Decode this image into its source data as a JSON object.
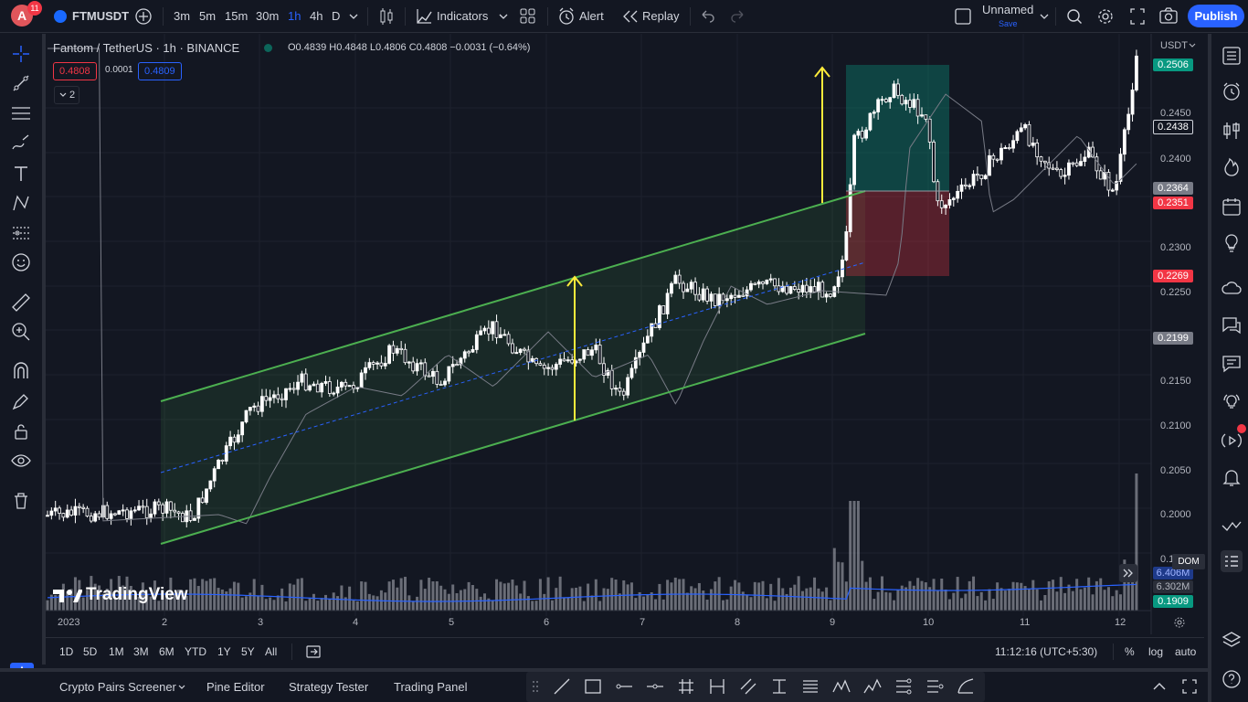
{
  "topbar": {
    "avatar_letter": "A",
    "notification_count": "11",
    "symbol": "FTMUSDT",
    "intervals": [
      "3m",
      "5m",
      "15m",
      "30m",
      "1h",
      "4h",
      "D"
    ],
    "active_interval": "1h",
    "indicators_label": "Indicators",
    "alert_label": "Alert",
    "replay_label": "Replay",
    "layout_name": "Unnamed",
    "save_label": "Save",
    "publish_label": "Publish"
  },
  "legend": {
    "title": "Fantom / TetherUS · 1h · BINANCE",
    "ohlc": "O0.4839 H0.4848 L0.4806 C0.4808 −0.0031 (−0.64%)",
    "bid": "0.4808",
    "spread": "0.0001",
    "ask": "0.4809",
    "indicator_count": "2"
  },
  "price_axis": {
    "currency": "USDT",
    "ticks": [
      "0.2450",
      "0.2400",
      "0.2300",
      "0.2250",
      "0.2150",
      "0.2100",
      "0.2050",
      "0.2000",
      "0.1"
    ],
    "labels": [
      {
        "value": "0.2506",
        "color": "#089981"
      },
      {
        "value": "0.2438",
        "color": "#131722"
      },
      {
        "value": "0.2364",
        "color": "#787b86"
      },
      {
        "value": "0.2351",
        "color": "#f23645"
      },
      {
        "value": "0.2269",
        "color": "#f23645"
      },
      {
        "value": "0.2199",
        "color": "#787b86"
      },
      {
        "value": "6.406M",
        "color": "#1e3a8a"
      },
      {
        "value": "6.302M",
        "color": "#2a2e39"
      },
      {
        "value": "0.1909",
        "color": "#089981"
      }
    ],
    "dom_label": "DOM"
  },
  "time_axis": {
    "labels": [
      "2023",
      "2",
      "3",
      "4",
      "5",
      "6",
      "7",
      "8",
      "9",
      "10",
      "11",
      "12"
    ]
  },
  "watermark": "TradingView",
  "range_bar": {
    "ranges": [
      "1D",
      "5D",
      "1M",
      "3M",
      "6M",
      "YTD",
      "1Y",
      "5Y",
      "All"
    ],
    "clock": "11:12:16 (UTC+5:30)",
    "percent": "%",
    "log": "log",
    "auto": "auto"
  },
  "bottom_tabs": [
    "Crypto Pairs Screener",
    "Pine Editor",
    "Strategy Tester",
    "Trading Panel"
  ],
  "colors": {
    "accent": "#2962ff",
    "up": "#ffffff",
    "channel": "#4caf50",
    "arrow": "#ffeb3b",
    "target_zone": "#089981",
    "stop_zone": "#f23645"
  }
}
